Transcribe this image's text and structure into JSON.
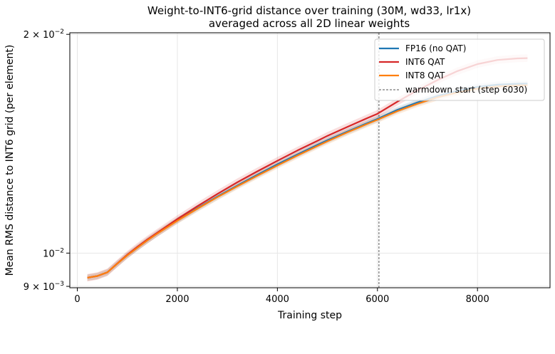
{
  "chart_data": {
    "type": "line",
    "title": [
      "Weight-to-INT6-grid distance over training (30M, wd33, lr1x)",
      "averaged across all 2D linear weights"
    ],
    "xlabel": "Training step",
    "ylabel": "Mean RMS distance to INT6 grid (per element)",
    "xlim": [
      -150,
      9450
    ],
    "ylim": [
      0.00896,
      0.0201
    ],
    "yscale": "log",
    "grid": true,
    "legend_position": "upper right",
    "x_ticks": [
      0,
      2000,
      4000,
      6000,
      8000
    ],
    "x_tick_labels": [
      "0",
      "2000",
      "4000",
      "6000",
      "8000"
    ],
    "y_ticks": [
      0.02,
      0.01,
      0.009
    ],
    "y_tick_labels": [
      {
        "base": "2",
        "exp": "−2"
      },
      {
        "base": "",
        "exp": "−2"
      },
      {
        "base": "9",
        "exp": "−3"
      }
    ],
    "x": [
      200,
      400,
      600,
      800,
      1000,
      1200,
      1400,
      1600,
      2000,
      2400,
      2800,
      3200,
      3600,
      4000,
      4400,
      4800,
      5000,
      5400,
      5800,
      6000,
      6400,
      6800,
      7200,
      7600,
      8000,
      8400,
      8800,
      9000
    ],
    "series": [
      {
        "name": "FP16 (no QAT)",
        "color": "#1f77b4",
        "values": [
          0.00925,
          0.0093,
          0.00941,
          0.00967,
          0.00993,
          0.01017,
          0.01041,
          0.01064,
          0.01109,
          0.01153,
          0.01196,
          0.01239,
          0.01282,
          0.01325,
          0.01367,
          0.01409,
          0.0143,
          0.0147,
          0.0151,
          0.0153,
          0.01575,
          0.01612,
          0.01645,
          0.01672,
          0.01693,
          0.01705,
          0.0171,
          0.01711
        ],
        "band": 0.01
      },
      {
        "name": "INT6 QAT",
        "color": "#d62728",
        "values": [
          0.00925,
          0.0093,
          0.00941,
          0.00968,
          0.00995,
          0.0102,
          0.01044,
          0.01067,
          0.01114,
          0.0116,
          0.01206,
          0.01252,
          0.01296,
          0.0134,
          0.01384,
          0.01427,
          0.0145,
          0.01492,
          0.01534,
          0.01555,
          0.01616,
          0.01675,
          0.0173,
          0.0178,
          0.0182,
          0.01844,
          0.01853,
          0.01855
        ],
        "band": 0.012
      },
      {
        "name": "INT8 QAT",
        "color": "#ff7f0e",
        "values": [
          0.00925,
          0.0093,
          0.00941,
          0.00967,
          0.00993,
          0.01017,
          0.01041,
          0.01064,
          0.01108,
          0.01151,
          0.01194,
          0.01236,
          0.01278,
          0.0132,
          0.01362,
          0.01404,
          0.01425,
          0.01466,
          0.01506,
          0.01526,
          0.01568,
          0.01605,
          0.01638,
          0.01664,
          0.01684,
          0.01696,
          0.01701,
          0.01702
        ],
        "band": 0.01
      }
    ],
    "vline": {
      "x": 6030,
      "label": "warmdown start (step 6030)",
      "color": "#555555"
    }
  }
}
